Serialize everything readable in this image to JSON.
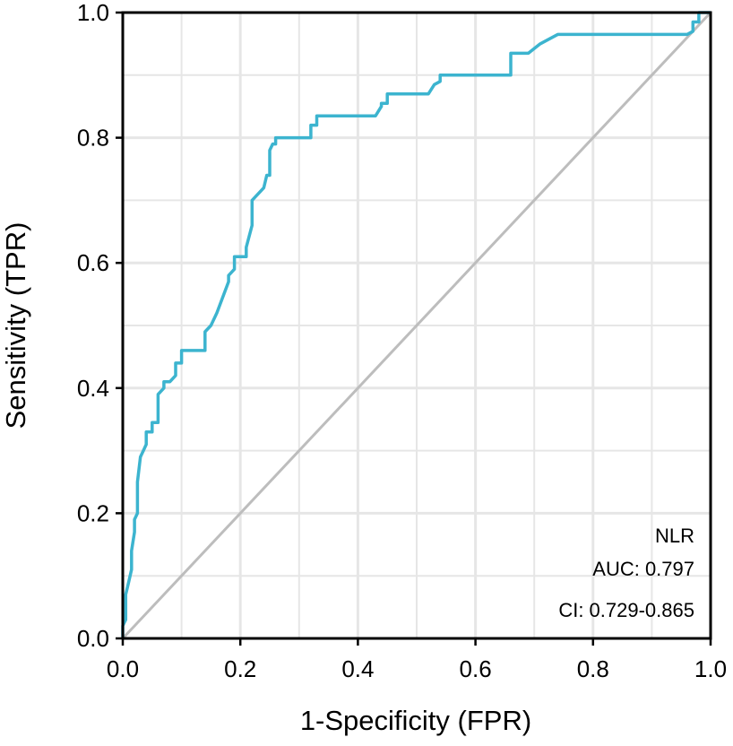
{
  "chart_data": {
    "type": "line",
    "xlabel": "1-Specificity (FPR)",
    "ylabel": "Sensitivity (TPR)",
    "xlim": [
      0,
      1
    ],
    "ylim": [
      0,
      1
    ],
    "x_ticks": [
      "0.0",
      "0.2",
      "0.4",
      "0.6",
      "0.8",
      "1.0"
    ],
    "y_ticks": [
      "0.0",
      "0.2",
      "0.4",
      "0.6",
      "0.8",
      "1.0"
    ],
    "grid": true,
    "colors": {
      "roc": "#3cb4cf",
      "reference": "#bdbdbd",
      "grid": "#e6e6e6"
    },
    "annotations": [
      "NLR",
      "AUC: 0.797",
      "CI: 0.729-0.865"
    ],
    "series": [
      {
        "name": "NLR",
        "x": [
          0.0,
          0.0,
          0.005,
          0.005,
          0.01,
          0.015,
          0.015,
          0.02,
          0.02,
          0.025,
          0.025,
          0.03,
          0.035,
          0.04,
          0.04,
          0.05,
          0.05,
          0.06,
          0.06,
          0.07,
          0.07,
          0.08,
          0.09,
          0.09,
          0.1,
          0.1,
          0.14,
          0.14,
          0.15,
          0.16,
          0.18,
          0.18,
          0.19,
          0.19,
          0.21,
          0.21,
          0.22,
          0.22,
          0.24,
          0.245,
          0.25,
          0.25,
          0.255,
          0.26,
          0.26,
          0.32,
          0.32,
          0.33,
          0.33,
          0.43,
          0.44,
          0.44,
          0.45,
          0.45,
          0.52,
          0.53,
          0.54,
          0.54,
          0.66,
          0.66,
          0.69,
          0.71,
          0.72,
          0.74,
          0.96,
          0.97,
          0.97,
          0.98,
          0.98,
          1.0
        ],
        "y": [
          0.0,
          0.02,
          0.03,
          0.07,
          0.09,
          0.11,
          0.14,
          0.17,
          0.19,
          0.2,
          0.25,
          0.29,
          0.3,
          0.31,
          0.33,
          0.33,
          0.345,
          0.345,
          0.39,
          0.4,
          0.41,
          0.41,
          0.42,
          0.44,
          0.44,
          0.46,
          0.46,
          0.49,
          0.5,
          0.52,
          0.57,
          0.58,
          0.59,
          0.61,
          0.61,
          0.625,
          0.66,
          0.7,
          0.72,
          0.74,
          0.74,
          0.78,
          0.79,
          0.79,
          0.8,
          0.8,
          0.82,
          0.82,
          0.835,
          0.835,
          0.85,
          0.855,
          0.855,
          0.87,
          0.87,
          0.885,
          0.89,
          0.9,
          0.9,
          0.935,
          0.935,
          0.95,
          0.955,
          0.965,
          0.965,
          0.97,
          0.985,
          0.985,
          1.0,
          1.0
        ]
      }
    ]
  }
}
